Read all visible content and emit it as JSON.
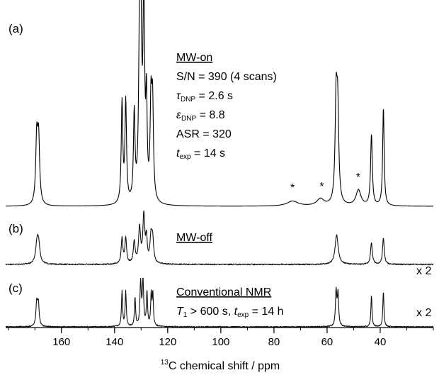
{
  "chart_data": {
    "type": "line",
    "xlabel_sup": "13",
    "xlabel_rest": "C chemical shift / ppm",
    "x_reversed": true,
    "xlim": [
      181,
      20
    ],
    "xticks": [
      160,
      140,
      120,
      100,
      80,
      60,
      40
    ],
    "xtick_labels": [
      "160",
      "140",
      "120",
      "100",
      "80",
      "60",
      "40"
    ],
    "panels": [
      {
        "label": "(a)",
        "intensity_scale": 1.0,
        "peaks": [
          {
            "x": 169.3,
            "h": 0.33,
            "w": 0.45
          },
          {
            "x": 168.6,
            "h": 0.32,
            "w": 0.45
          },
          {
            "x": 137.2,
            "h": 0.51,
            "w": 0.35
          },
          {
            "x": 135.8,
            "h": 0.51,
            "w": 0.35
          },
          {
            "x": 132.6,
            "h": 0.44,
            "w": 0.35
          },
          {
            "x": 130.6,
            "h": 0.76,
            "w": 0.4
          },
          {
            "x": 130.1,
            "h": 0.74,
            "w": 0.4
          },
          {
            "x": 129.0,
            "h": 1.0,
            "w": 0.38
          },
          {
            "x": 128.0,
            "h": 0.47,
            "w": 0.3
          },
          {
            "x": 126.3,
            "h": 0.47,
            "w": 0.38
          },
          {
            "x": 125.7,
            "h": 0.47,
            "w": 0.38
          },
          {
            "x": 73.0,
            "h": 0.025,
            "w": 2.5
          },
          {
            "x": 62.5,
            "h": 0.035,
            "w": 1.6
          },
          {
            "x": 56.6,
            "h": 0.5,
            "w": 0.45
          },
          {
            "x": 56.0,
            "h": 0.45,
            "w": 0.45
          },
          {
            "x": 48.2,
            "h": 0.08,
            "w": 1.1
          },
          {
            "x": 43.3,
            "h": 0.36,
            "w": 0.38
          },
          {
            "x": 38.8,
            "h": 0.5,
            "w": 0.33
          }
        ],
        "asterisks": [
          {
            "x": 73.0,
            "text": "*"
          },
          {
            "x": 62.0,
            "text": "*"
          },
          {
            "x": 48.3,
            "text": "*"
          }
        ],
        "annotations": [
          {
            "text": "MW-on",
            "underline": true,
            "style": "plain"
          },
          {
            "text": "S/N = 390 (4 scans)",
            "style": "plain"
          },
          {
            "sym": "τ",
            "sub": "DNP",
            "rest": " = 2.6 s",
            "style": "symbol"
          },
          {
            "sym": "ε",
            "sub": "DNP",
            "rest": " = 8.8",
            "style": "symbol"
          },
          {
            "text": "ASR = 320",
            "style": "plain"
          },
          {
            "sym": "t",
            "sub": "exp",
            "rest": " = 14 s",
            "style": "symbol"
          }
        ],
        "multiplier": ""
      },
      {
        "label": "(b)",
        "intensity_scale": 1.0,
        "peaks": [
          {
            "x": 169.2,
            "h": 0.4,
            "w": 0.6
          },
          {
            "x": 168.6,
            "h": 0.38,
            "w": 0.6
          },
          {
            "x": 137.2,
            "h": 0.53,
            "w": 0.38
          },
          {
            "x": 135.8,
            "h": 0.53,
            "w": 0.38
          },
          {
            "x": 132.6,
            "h": 0.46,
            "w": 0.4
          },
          {
            "x": 130.6,
            "h": 0.75,
            "w": 0.45
          },
          {
            "x": 129.0,
            "h": 1.0,
            "w": 0.42
          },
          {
            "x": 128.0,
            "h": 0.5,
            "w": 0.35
          },
          {
            "x": 126.3,
            "h": 0.5,
            "w": 0.45
          },
          {
            "x": 125.7,
            "h": 0.5,
            "w": 0.45
          },
          {
            "x": 56.4,
            "h": 0.62,
            "w": 0.7
          },
          {
            "x": 43.3,
            "h": 0.45,
            "w": 0.4
          },
          {
            "x": 38.8,
            "h": 0.55,
            "w": 0.38
          }
        ],
        "asterisks": [],
        "annotations": [
          {
            "text": "MW-off",
            "underline": true,
            "style": "plain"
          }
        ],
        "multiplier": "x 2"
      },
      {
        "label": "(c)",
        "intensity_scale": 1.0,
        "peaks": [
          {
            "x": 169.3,
            "h": 0.52,
            "w": 0.35
          },
          {
            "x": 168.7,
            "h": 0.5,
            "w": 0.35
          },
          {
            "x": 137.2,
            "h": 0.78,
            "w": 0.25
          },
          {
            "x": 135.8,
            "h": 0.78,
            "w": 0.25
          },
          {
            "x": 132.3,
            "h": 0.65,
            "w": 0.25
          },
          {
            "x": 130.2,
            "h": 0.96,
            "w": 0.3
          },
          {
            "x": 129.3,
            "h": 1.0,
            "w": 0.3
          },
          {
            "x": 127.8,
            "h": 0.75,
            "w": 0.25
          },
          {
            "x": 126.2,
            "h": 0.7,
            "w": 0.25
          },
          {
            "x": 125.6,
            "h": 0.7,
            "w": 0.25
          },
          {
            "x": 56.6,
            "h": 0.78,
            "w": 0.3
          },
          {
            "x": 55.9,
            "h": 0.72,
            "w": 0.3
          },
          {
            "x": 43.3,
            "h": 0.7,
            "w": 0.25
          },
          {
            "x": 38.8,
            "h": 0.8,
            "w": 0.25
          }
        ],
        "asterisks": [],
        "annotations": [
          {
            "text": "Conventional NMR",
            "underline": true,
            "style": "plain"
          },
          {
            "sym": "T",
            "sub": "1",
            "rest": " > 600 s, ",
            "sym2": "t",
            "sub2": "exp",
            "rest2": " = 14 h",
            "style": "symbol2"
          }
        ],
        "multiplier": "x 2"
      }
    ]
  }
}
